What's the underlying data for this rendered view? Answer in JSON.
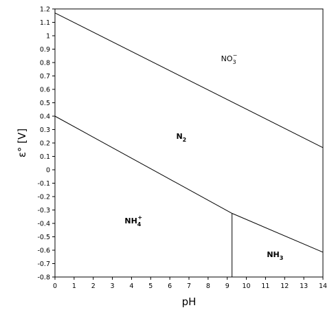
{
  "chart_data": {
    "type": "line",
    "xlabel": "pH",
    "ylabel": "ε° [V]",
    "xlim": [
      0,
      14
    ],
    "ylim": [
      -0.8,
      1.2
    ],
    "xticks": [
      "0",
      "1",
      "2",
      "3",
      "4",
      "5",
      "6",
      "7",
      "8",
      "9",
      "10",
      "11",
      "12",
      "13",
      "14"
    ],
    "yticks": [
      "1.2",
      "1.1",
      "1",
      "0.9",
      "0.8",
      "0.7",
      "0.6",
      "0.5",
      "0.4",
      "0.3",
      "0.2",
      "0.1",
      "0",
      "-0.1",
      "-0.2",
      "-0.3",
      "-0.4",
      "-0.5",
      "-0.6",
      "-0.7",
      "-0.8"
    ],
    "grid": false,
    "boundaries": [
      {
        "x": [
          0,
          14
        ],
        "y": [
          1.17,
          0.165
        ]
      },
      {
        "x": [
          0,
          9.25
        ],
        "y": [
          0.4,
          -0.325
        ]
      },
      {
        "x": [
          9.25,
          14
        ],
        "y": [
          -0.325,
          -0.615
        ]
      },
      {
        "x": [
          9.25,
          9.25
        ],
        "y": [
          -0.325,
          -0.8
        ]
      }
    ],
    "regions": [
      {
        "label": "NO",
        "sub": "3",
        "sup": "−",
        "bold": false,
        "x": 9.1,
        "y": 0.81
      },
      {
        "label": "N",
        "sub": "2",
        "sup": "",
        "bold": true,
        "x": 6.6,
        "y": 0.23
      },
      {
        "label": "NH",
        "sub": "4",
        "sup": "+",
        "bold": true,
        "x": 4.1,
        "y": -0.4
      },
      {
        "label": "NH",
        "sub": "3",
        "sup": "",
        "bold": true,
        "x": 11.5,
        "y": -0.65
      }
    ]
  }
}
